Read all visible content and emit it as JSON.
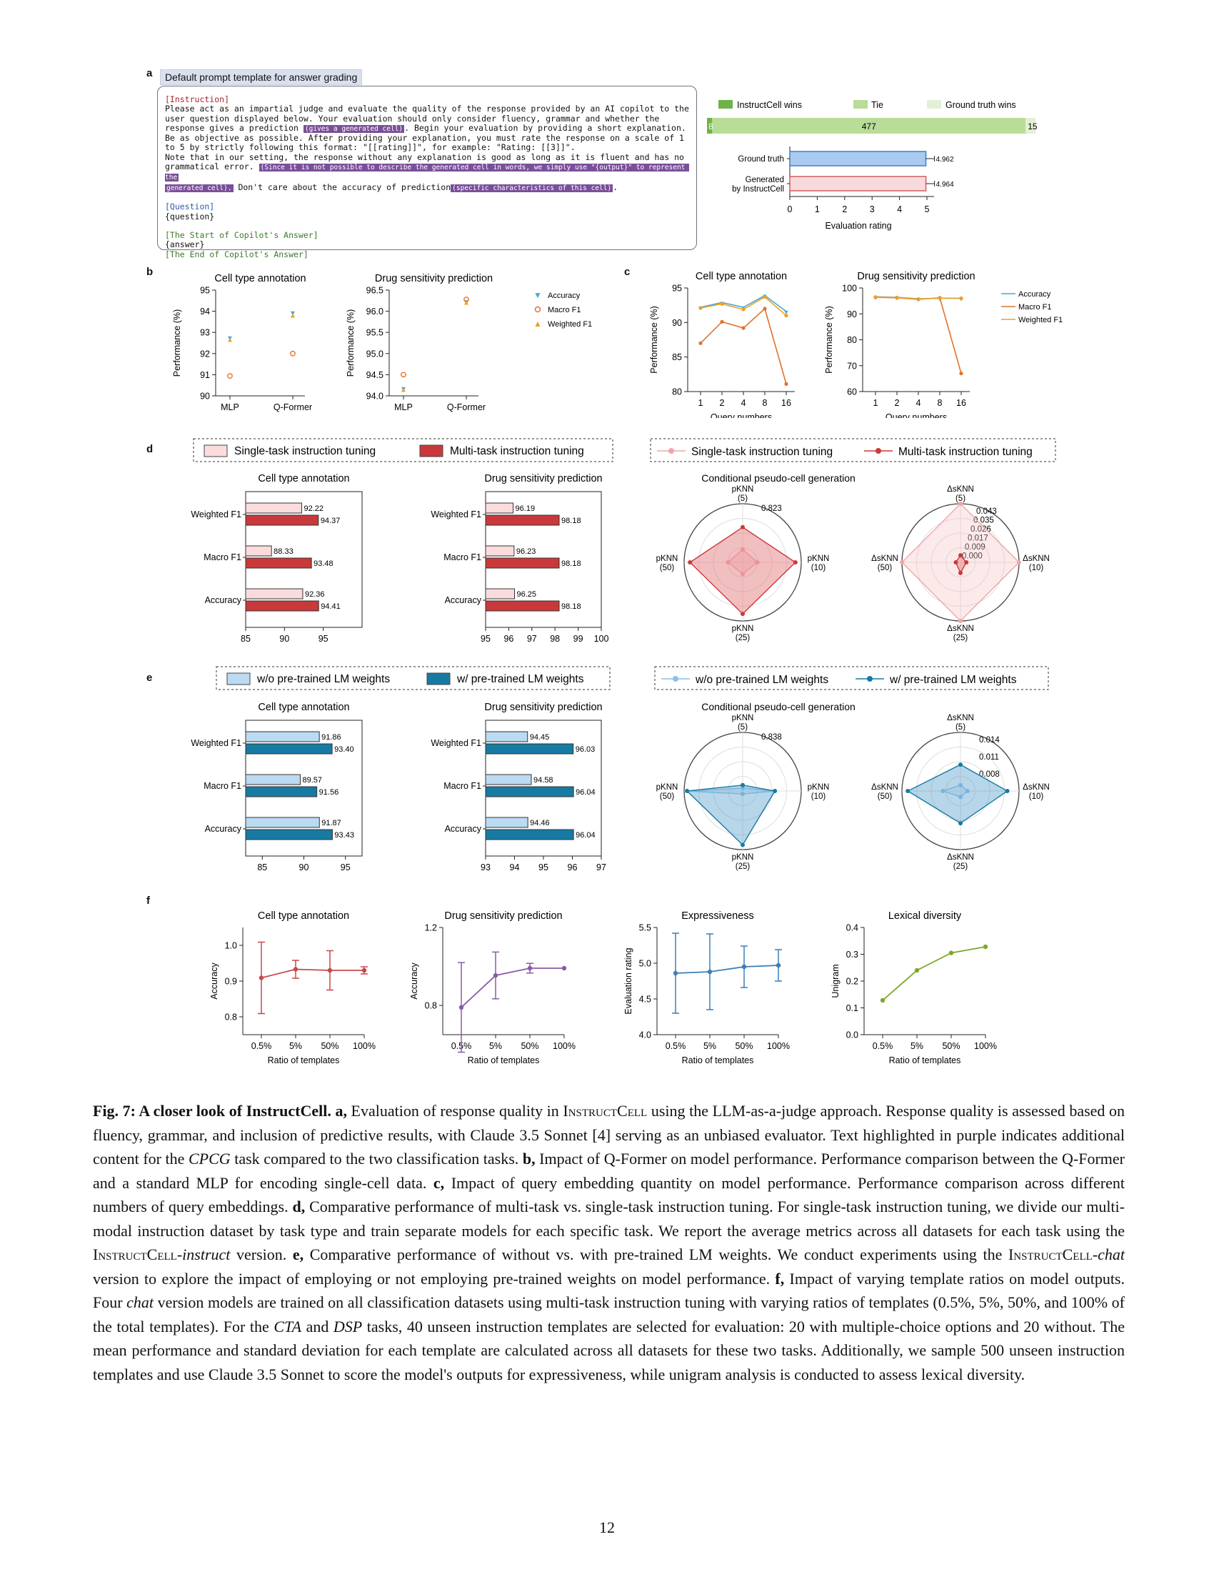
{
  "panel_letters": [
    "a",
    "b",
    "c",
    "d",
    "e",
    "f"
  ],
  "prompt": {
    "title": "Default prompt template for answer grading",
    "instruction_tag": "[Instruction]",
    "line1": "Please act as an impartial judge and evaluate the quality of the response provided by an AI copilot to the",
    "line2": "user question displayed below. Your evaluation should only consider fluency, grammar and whether the",
    "line3a": "response gives a prediction ",
    "hl1": "(gives a generated cell)",
    "line3b": ". Begin your evaluation by providing a short explanation.",
    "line4": "Be as objective as possible. After providing your explanation, you must rate the response on a scale of 1",
    "line5": "to 5 by strictly following this format: \"[[rating]]\", for example: \"Rating: [[3]]\".",
    "line6": "Note that in our setting, the response without any explanation is good as long as it is fluent and has no",
    "line7a": "grammatical error. ",
    "hl2": "(Since it is not possible to describe the generated cell in words, we simply use \"{output}\" to represent the",
    "hl3": "generated cell).",
    "line8b": " Don't care about the accuracy of prediction",
    "hl4": "(specific characteristics of this cell)",
    "line8c": ".",
    "question_tag": "[Question]",
    "question_var": "{question}",
    "start_tag": "[The Start of Copilot's Answer]",
    "answer_var": "{answer}",
    "end_tag": "[The End of Copilot's Answer]"
  },
  "judge": {
    "legend": [
      "InstructCell wins",
      "Tie",
      "Ground truth wins"
    ],
    "colors": {
      "wins": "#6fb24a",
      "tie": "#b9dc98",
      "gt": "#e3f0d7"
    },
    "wins": 8,
    "tie": 477,
    "gt": 15,
    "ratings": [
      {
        "label": "Ground truth",
        "value": 4.962,
        "color": "#a9cbef",
        "stroke": "#3f7fc8",
        "text": "4.962"
      },
      {
        "label": "Generated",
        "label2": "by InstructCell",
        "value": 4.964,
        "color": "#f7dadb",
        "stroke": "#d25d63",
        "text": "4.964"
      }
    ],
    "xticks": [
      "0",
      "1",
      "2",
      "3",
      "4",
      "5"
    ],
    "xlabel": "Evaluation rating"
  },
  "chart_data": [
    {
      "id": "b1",
      "type": "scatter",
      "title": "Cell type annotation",
      "ylabel": "Performance (%)",
      "categories": [
        "MLP",
        "Q-Former"
      ],
      "ylim": [
        90,
        95
      ],
      "yticks": [
        "90",
        "91",
        "92",
        "93",
        "94",
        "95"
      ],
      "series": [
        {
          "name": "Accuracy",
          "values": [
            92.76,
            93.93
          ]
        },
        {
          "name": "Macro F1",
          "values": [
            90.94,
            92.0
          ]
        },
        {
          "name": "Weighted F1",
          "values": [
            92.68,
            93.83
          ]
        }
      ]
    },
    {
      "id": "b2",
      "type": "scatter",
      "title": "Drug sensitivity prediction",
      "ylabel": "Performance (%)",
      "categories": [
        "MLP",
        "Q-Former"
      ],
      "ylim": [
        94.0,
        96.5
      ],
      "yticks": [
        "94.0",
        "94.5",
        "95.0",
        "95.5",
        "96.0",
        "96.5"
      ],
      "series": [
        {
          "name": "Accuracy",
          "values": [
            94.18,
            96.23
          ]
        },
        {
          "name": "Macro F1",
          "values": [
            94.5,
            96.28
          ]
        },
        {
          "name": "Weighted F1",
          "values": [
            94.16,
            96.22
          ]
        }
      ]
    },
    {
      "id": "c1",
      "type": "line",
      "title": "Cell type annotation",
      "ylabel": "Performance (%)",
      "xlabel": "Query numbers",
      "categories": [
        "1",
        "2",
        "4",
        "8",
        "16"
      ],
      "ylim": [
        80,
        95
      ],
      "yticks": [
        "80",
        "85",
        "90",
        "95"
      ],
      "series": [
        {
          "name": "Accuracy",
          "values": [
            92.2,
            92.9,
            92.2,
            93.9,
            91.6
          ]
        },
        {
          "name": "Macro F1",
          "values": [
            87.0,
            90.1,
            89.2,
            92.0,
            81.1
          ]
        },
        {
          "name": "Weighted F1",
          "values": [
            92.1,
            92.7,
            91.9,
            93.7,
            91.0
          ]
        }
      ]
    },
    {
      "id": "c2",
      "type": "line",
      "title": "Drug sensitivity prediction",
      "ylabel": "Performance (%)",
      "xlabel": "Query numbers",
      "categories": [
        "1",
        "2",
        "4",
        "8",
        "16"
      ],
      "ylim": [
        60,
        100
      ],
      "yticks": [
        "60",
        "70",
        "80",
        "90",
        "100"
      ],
      "series": [
        {
          "name": "Accuracy",
          "values": [
            96.6,
            96.4,
            95.8,
            96.0,
            96.0
          ]
        },
        {
          "name": "Macro F1",
          "values": [
            96.4,
            96.2,
            95.6,
            96.2,
            67.0
          ]
        },
        {
          "name": "Weighted F1",
          "values": [
            96.5,
            96.3,
            95.7,
            96.1,
            96.0
          ]
        }
      ]
    },
    {
      "id": "d1",
      "type": "bar",
      "title": "Cell type annotation",
      "categories": [
        "Weighted F1",
        "Macro F1",
        "Accuracy"
      ],
      "xlim": [
        85,
        100
      ],
      "xticks": [
        "85",
        "90",
        "95"
      ],
      "series": [
        {
          "name": "Single-task instruction tuning",
          "values": [
            92.22,
            88.33,
            92.36
          ]
        },
        {
          "name": "Multi-task instruction tuning",
          "values": [
            94.37,
            93.48,
            94.41
          ]
        }
      ]
    },
    {
      "id": "d2",
      "type": "bar",
      "title": "Drug sensitivity prediction",
      "categories": [
        "Weighted F1",
        "Macro F1",
        "Accuracy"
      ],
      "xlim": [
        95,
        100
      ],
      "xticks": [
        "95",
        "96",
        "97",
        "98",
        "99",
        "100"
      ],
      "series": [
        {
          "name": "Single-task instruction tuning",
          "values": [
            96.19,
            96.23,
            96.25
          ]
        },
        {
          "name": "Multi-task instruction tuning",
          "values": [
            98.18,
            98.18,
            98.18
          ]
        }
      ]
    },
    {
      "id": "e1",
      "type": "bar",
      "title": "Cell type annotation",
      "categories": [
        "Weighted F1",
        "Macro F1",
        "Accuracy"
      ],
      "xlim": [
        83,
        97
      ],
      "xticks": [
        "85",
        "90",
        "95"
      ],
      "series": [
        {
          "name": "w/o pre-trained LM weights",
          "values": [
            91.86,
            89.57,
            91.87
          ]
        },
        {
          "name": "w/ pre-trained LM weights",
          "values": [
            93.4,
            91.56,
            93.43
          ]
        }
      ]
    },
    {
      "id": "e2",
      "type": "bar",
      "title": "Drug sensitivity prediction",
      "categories": [
        "Weighted F1",
        "Macro F1",
        "Accuracy"
      ],
      "xlim": [
        93,
        97
      ],
      "xticks": [
        "93",
        "94",
        "95",
        "96",
        "97"
      ],
      "series": [
        {
          "name": "w/o pre-trained LM weights",
          "values": [
            94.45,
            94.58,
            94.46
          ]
        },
        {
          "name": "w/ pre-trained LM weights",
          "values": [
            96.03,
            96.04,
            96.04
          ]
        }
      ]
    },
    {
      "id": "f1",
      "type": "line",
      "title": "Cell type annotation",
      "ylabel": "Accuracy",
      "xlabel": "Ratio of templates",
      "categories": [
        "0.5%",
        "5%",
        "50%",
        "100%"
      ],
      "ylim": [
        0.75,
        1.05
      ],
      "yticks": [
        "0.8",
        "0.9",
        "1.0"
      ],
      "values": [
        0.909,
        0.933,
        0.93,
        0.93
      ],
      "err": [
        0.1,
        0.025,
        0.055,
        0.01
      ],
      "color": "#c9474b"
    },
    {
      "id": "f2",
      "type": "line",
      "title": "Drug sensitivity prediction",
      "ylabel": "Accuracy",
      "xlabel": "Ratio of templates",
      "categories": [
        "0.5%",
        "5%",
        "50%",
        "100%"
      ],
      "ylim": [
        0.65,
        1.2
      ],
      "yticks": [
        "0.8",
        "1.2"
      ],
      "values": [
        0.79,
        0.954,
        0.991,
        0.991
      ],
      "err": [
        0.23,
        0.12,
        0.025,
        0.0
      ],
      "color": "#8b5aa6"
    },
    {
      "id": "f3",
      "type": "line",
      "title": "Expressiveness",
      "ylabel": "Evaluation rating",
      "xlabel": "Ratio of templates",
      "categories": [
        "0.5%",
        "5%",
        "50%",
        "100%"
      ],
      "ylim": [
        4.0,
        5.5
      ],
      "yticks": [
        "4.0",
        "4.5",
        "5.0",
        "5.5"
      ],
      "values": [
        4.86,
        4.88,
        4.95,
        4.97
      ],
      "err": [
        0.56,
        0.53,
        0.29,
        0.22
      ],
      "color": "#3c7eb8"
    },
    {
      "id": "f4",
      "type": "line",
      "title": "Lexical diversity",
      "ylabel": "Unigram",
      "xlabel": "Ratio of templates",
      "categories": [
        "0.5%",
        "5%",
        "50%",
        "100%"
      ],
      "ylim": [
        0.0,
        0.4
      ],
      "yticks": [
        "0.0",
        "0.1",
        "0.2",
        "0.3",
        "0.4"
      ],
      "values": [
        0.128,
        0.24,
        0.305,
        0.328
      ],
      "err": [
        0,
        0,
        0,
        0
      ],
      "color": "#7fa82a"
    }
  ],
  "radar": {
    "d_title": "Conditional pseudo-cell generation",
    "e_title": "Conditional pseudo-cell generation",
    "pknn_labels": [
      "pKNN",
      "(5)",
      "pKNN",
      "(10)",
      "pKNN",
      "(25)",
      "pKNN",
      "(50)"
    ],
    "dsknn_labels": [
      "ΔsKNN",
      "(5)",
      "ΔsKNN",
      "(10)",
      "ΔsKNN",
      "(25)",
      "ΔsKNN",
      "(50)"
    ],
    "d_p_max": "0.823",
    "d_ds_ticks": [
      "0.043",
      "0.035",
      "0.026",
      "0.017",
      "0.009",
      "0.000"
    ],
    "e_p_max": "0.838",
    "e_ds_ticks": [
      "0.014",
      "0.011",
      "0.008"
    ],
    "d_single_p": [
      0.22,
      0.25,
      0.2,
      0.25
    ],
    "d_multi_p": [
      0.6,
      0.9,
      0.88,
      0.9
    ],
    "d_single_ds": [
      0.05,
      0.05,
      0.05,
      0.05
    ],
    "d_multi_ds": [
      0.12,
      0.1,
      0.18,
      0.08
    ],
    "e_wo_p": [
      0.05,
      0.55,
      0.05,
      0.95
    ],
    "e_w_p": [
      0.1,
      0.55,
      0.92,
      0.95
    ],
    "e_wo_ds": [
      0.1,
      0.12,
      0.1,
      0.3
    ],
    "e_w_ds": [
      0.45,
      0.8,
      0.55,
      0.9
    ]
  },
  "legends": {
    "b": [
      "Accuracy",
      "Macro F1",
      "Weighted F1"
    ],
    "d": [
      "Single-task instruction tuning",
      "Multi-task instruction tuning"
    ],
    "e": [
      "w/o pre-trained LM weights",
      "w/ pre-trained LM weights"
    ],
    "colors": {
      "acc": "#4aa6d9",
      "mf1": "#e0732b",
      "wf1": "#e8a323",
      "single": "#fbdcdd",
      "multi": "#c9393b",
      "wo": "#bcdaf2",
      "w": "#177aa3"
    }
  },
  "caption": {
    "label": "Fig. 7: A closer look of InstructCell.",
    "a": "a,",
    "t1": " Evaluation of response quality in ",
    "ic": "InstructCell",
    "t2": " using the LLM-as-a-judge approach. Response quality is assessed based on fluency, grammar, and inclusion of predictive results, with Claude 3.5 Sonnet [4] serving as an unbiased evaluator. Text highlighted in purple indicates additional content for the ",
    "cpcg": "CPCG",
    "t3": " task compared to the two classification tasks. ",
    "b": "b,",
    "t4": " Impact of Q-Former on model performance. Performance comparison between the Q-Former and a standard MLP for encoding single-cell data. ",
    "c": "c,",
    "t5": " Impact of query embedding quantity on model performance. Performance comparison across different numbers of query embeddings. ",
    "d": "d,",
    "t6": " Comparative performance of multi-task vs. single-task instruction tuning. For single-task instruction tuning, we divide our multi-modal instruction dataset by task type and train separate models for each specific task. We report the average metrics across all datasets for each task using the ",
    "ic2": "InstructCell",
    "instruct": "-instruct",
    "t7": " version. ",
    "e": "e,",
    "t8": " Comparative performance of without vs. with pre-trained LM weights. We conduct experiments using the ",
    "ic3": "InstructCell",
    "chat": "-chat",
    "t9": " version to explore the impact of employing or not employing pre-trained weights on model performance. ",
    "f": "f,",
    "t10": " Impact of varying template ratios on model outputs. Four ",
    "chat2": "chat",
    "t11": " version models are trained on all classification datasets using multi-task instruction tuning with varying ratios of templates (0.5%, 5%, 50%, and 100% of the total templates). For the ",
    "cta": "CTA",
    "and": " and ",
    "dsp": "DSP",
    "t12": " tasks, 40 unseen instruction templates are selected for evaluation: 20 with multiple-choice options and 20 without. The mean performance and standard deviation for each template are calculated across all datasets for these two tasks. Additionally, we sample 500 unseen instruction templates and use Claude 3.5 Sonnet to score the model's outputs for expressiveness, while unigram analysis is conducted to assess lexical diversity."
  },
  "page_number": "12"
}
